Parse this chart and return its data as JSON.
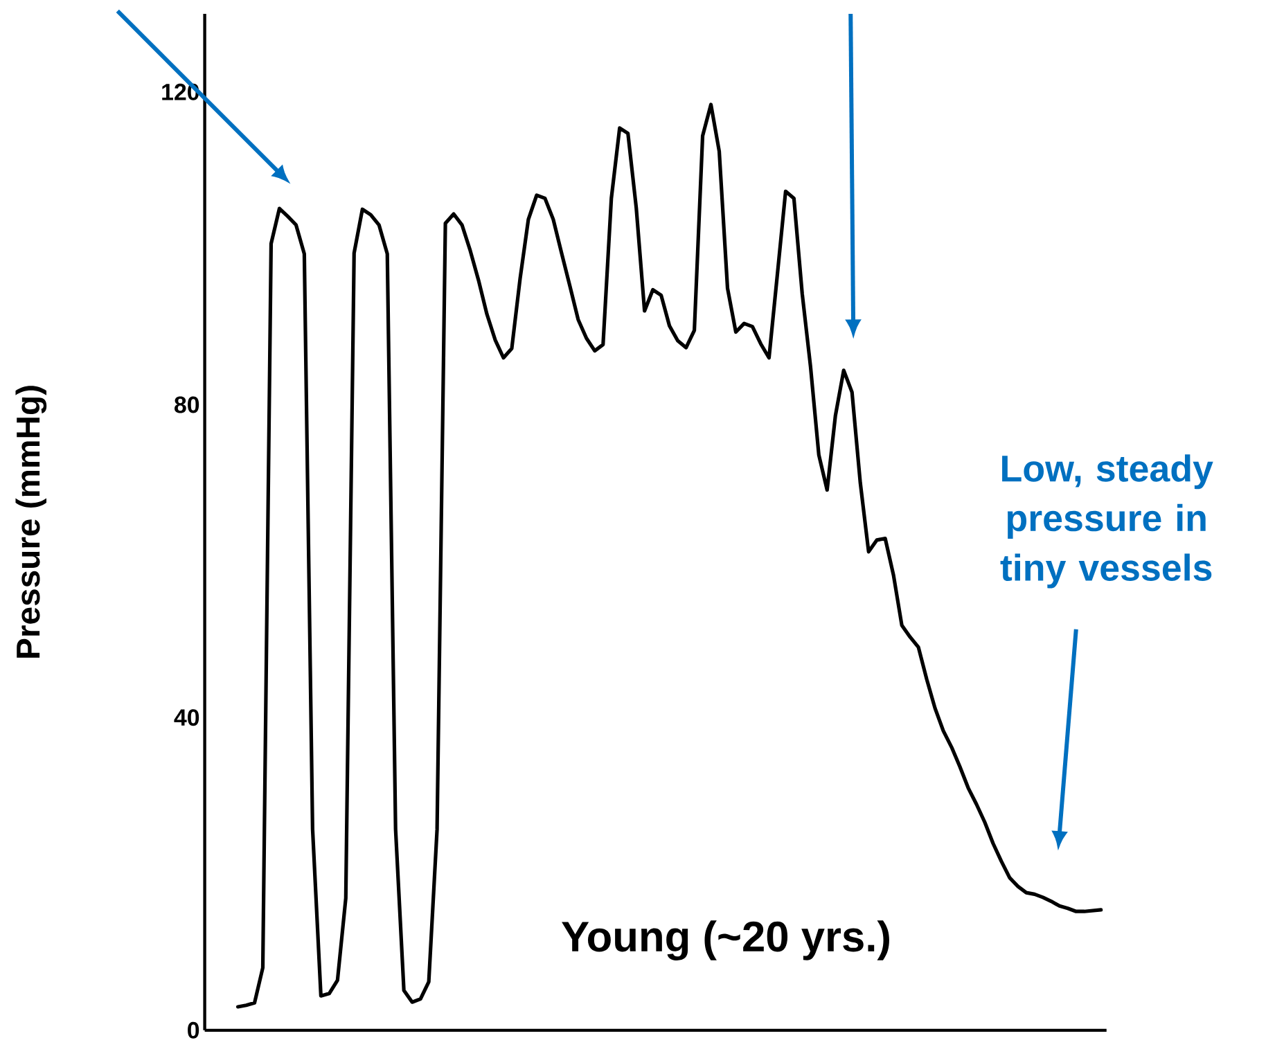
{
  "chart_data": {
    "type": "line",
    "ylabel": "Pressure (mmHg)",
    "ylim": [
      0,
      130
    ],
    "yticks": [
      0,
      40,
      80,
      120
    ],
    "tick_labels": "y",
    "grid": false,
    "marker": "none",
    "line_style": "solid",
    "annotations": [
      "Young (~20 yrs.)",
      "Low, steady pressure in tiny vessels"
    ],
    "categories": [
      null,
      null,
      null,
      null,
      null,
      null,
      null,
      null,
      null,
      null,
      null,
      null,
      null,
      null,
      null,
      null,
      null,
      null,
      null,
      null,
      null,
      null,
      null,
      null,
      null,
      null,
      null,
      null,
      null,
      null,
      null,
      null,
      null,
      null,
      null,
      null,
      null,
      null,
      null,
      null,
      null,
      null,
      null,
      null,
      null,
      null,
      null,
      null,
      null,
      null,
      null,
      null,
      null,
      null,
      null,
      null,
      null,
      null,
      null,
      null,
      null,
      null,
      null,
      null,
      null,
      null,
      null,
      null,
      null,
      null,
      null,
      null,
      null,
      null,
      null,
      null,
      null,
      null,
      null,
      null,
      null,
      null,
      null,
      null,
      null,
      null,
      null,
      null,
      null,
      null,
      null,
      null,
      null,
      null,
      null,
      null,
      null,
      null,
      null,
      null,
      null,
      null,
      null,
      null,
      null
    ],
    "series": [
      {
        "color": "#000000",
        "values": [
          3.0,
          3.2,
          3.5,
          8.0,
          100.6,
          105.1,
          104.1,
          103.0,
          99.3,
          25.7,
          4.4,
          4.7,
          6.4,
          16.9,
          99.4,
          105.0,
          104.3,
          103.0,
          99.3,
          25.7,
          5.1,
          3.6,
          4.0,
          6.2,
          25.7,
          103.2,
          104.4,
          103.0,
          99.7,
          95.9,
          91.6,
          88.3,
          86.0,
          87.2,
          96.1,
          103.7,
          106.8,
          106.4,
          103.7,
          99.4,
          95.2,
          90.9,
          88.5,
          86.9,
          87.7,
          106.4,
          115.4,
          114.7,
          105.2,
          92.0,
          94.7,
          94.0,
          90.1,
          88.2,
          87.3,
          89.5,
          114.4,
          118.4,
          112.4,
          94.9,
          89.3,
          90.4,
          90.0,
          87.8,
          86.0,
          96.6,
          107.3,
          106.4,
          94.2,
          84.9,
          73.6,
          69.1,
          78.6,
          84.4,
          81.6,
          70.0,
          61.2,
          62.7,
          62.9,
          58.2,
          51.8,
          50.3,
          49.0,
          44.9,
          41.2,
          38.3,
          36.2,
          33.7,
          31.0,
          28.9,
          26.6,
          23.9,
          21.6,
          19.5,
          18.4,
          17.6,
          17.4,
          17.0,
          16.5,
          15.9,
          15.6,
          15.2,
          15.2,
          15.3,
          15.4
        ]
      }
    ]
  }
}
